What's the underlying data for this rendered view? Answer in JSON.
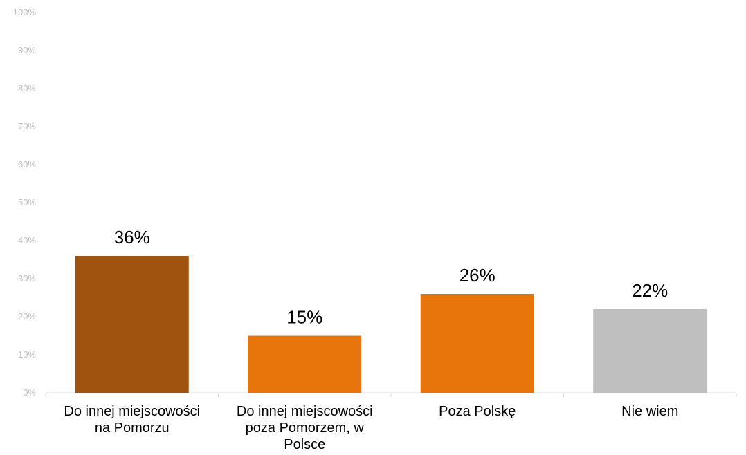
{
  "chart_data": {
    "type": "bar",
    "categories": [
      [
        "Do innej miejscowości",
        "na Pomorzu"
      ],
      [
        "Do innej miejscowości",
        "poza Pomorzem, w",
        "Polsce"
      ],
      [
        "Poza Polskę"
      ],
      [
        "Nie wiem"
      ]
    ],
    "values": [
      36,
      15,
      26,
      22
    ],
    "data_labels": [
      "36%",
      "15%",
      "26%",
      "22%"
    ],
    "bar_colors": [
      "#A0520F",
      "#E8740C",
      "#E8740C",
      "#BFBFBF"
    ],
    "y_ticks": [
      "0%",
      "10%",
      "20%",
      "30%",
      "40%",
      "50%",
      "60%",
      "70%",
      "80%",
      "90%",
      "100%"
    ],
    "ylim": [
      0,
      100
    ],
    "grid": false,
    "axis_color": "#D9D9D9",
    "tick_label_color": "#BFBFBF"
  }
}
